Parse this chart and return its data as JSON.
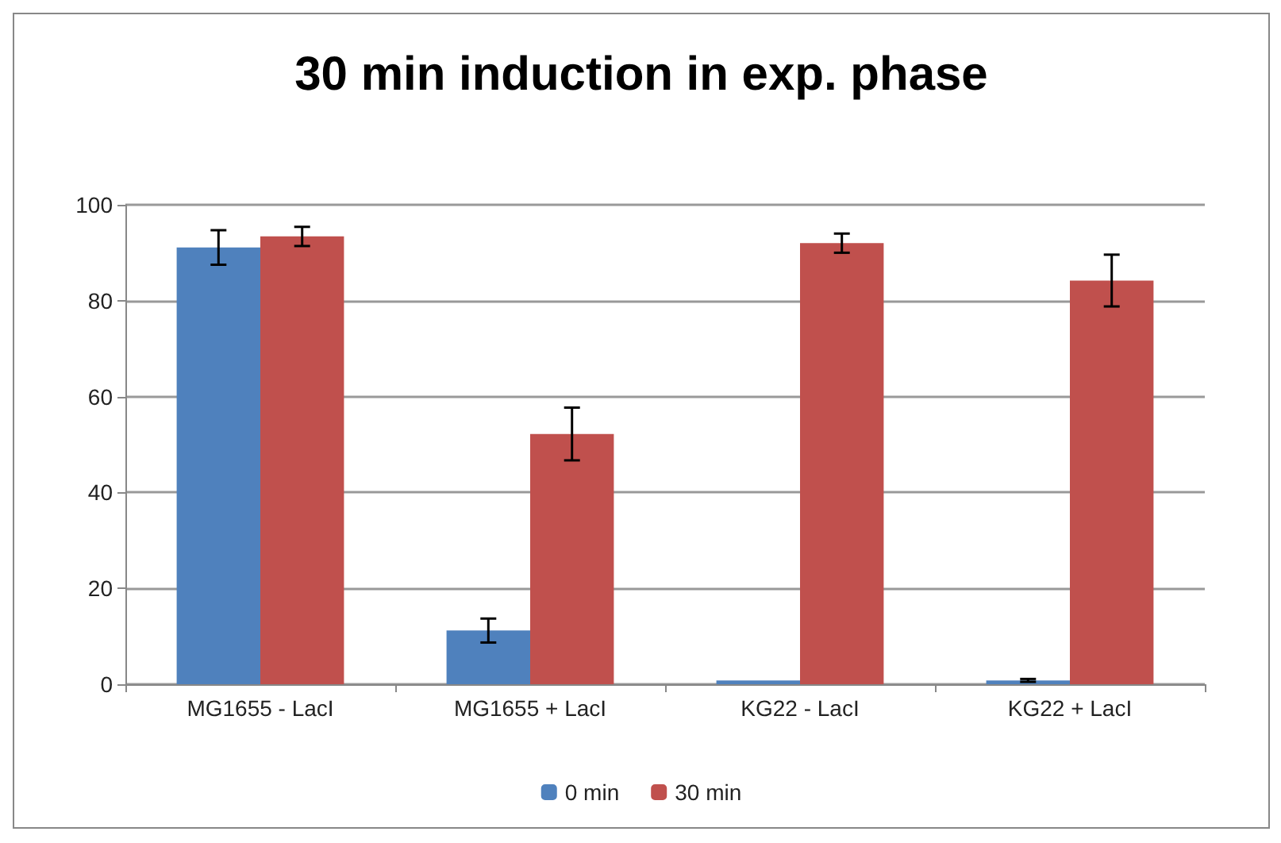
{
  "chart_data": {
    "type": "bar",
    "title": "30 min induction in exp. phase",
    "categories": [
      "MG1655 - LacI",
      "MG1655 + LacI",
      "KG22 - LacI",
      "KG22 + LacI"
    ],
    "series": [
      {
        "name": "0 min",
        "color": "#4f81bd",
        "values": [
          91.1,
          11.2,
          0.8,
          0.8
        ],
        "errors": [
          3.6,
          2.5,
          null,
          0.3
        ]
      },
      {
        "name": "30 min",
        "color": "#c0504d",
        "values": [
          93.4,
          52.2,
          92,
          84.2
        ],
        "errors": [
          2,
          5.5,
          2,
          5.4
        ]
      }
    ],
    "ylim": [
      0,
      100
    ],
    "yticks": [
      0,
      20,
      40,
      60,
      80,
      100
    ],
    "grid": "y",
    "legend": "bottom"
  }
}
